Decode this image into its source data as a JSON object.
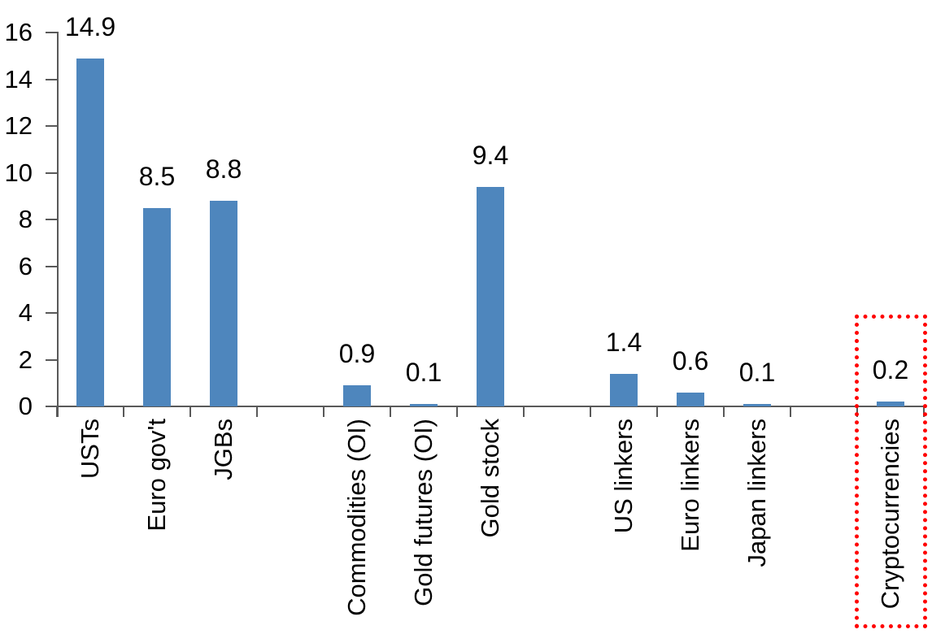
{
  "chart_data": {
    "type": "bar",
    "title": "",
    "xlabel": "",
    "ylabel": "",
    "categories": [
      "USTs",
      "Euro gov't",
      "JGBs",
      "",
      "Commodities (OI)",
      "Gold futures (OI)",
      "Gold stock",
      "",
      "US linkers",
      "Euro linkers",
      "Japan linkers",
      "",
      "Cryptocurrencies"
    ],
    "values": [
      14.9,
      8.5,
      8.8,
      null,
      0.9,
      0.1,
      9.4,
      null,
      1.4,
      0.6,
      0.1,
      null,
      0.2
    ],
    "data_labels": [
      "14.9",
      "8.5",
      "8.8",
      "",
      "0.9",
      "0.1",
      "9.4",
      "",
      "1.4",
      "0.6",
      "0.1",
      "",
      "0.2"
    ],
    "y_ticks": [
      "0",
      "2",
      "4",
      "6",
      "8",
      "10",
      "12",
      "14",
      "16"
    ],
    "ylim": [
      0,
      16
    ],
    "grid": false,
    "legend": "none",
    "bar_color": "#4E86BD",
    "axis_color": "#595959",
    "text_color": "#000000",
    "highlight_box": {
      "category": "Cryptocurrencies",
      "category_index": 12,
      "style": "dotted",
      "color": "#FF0000"
    }
  }
}
